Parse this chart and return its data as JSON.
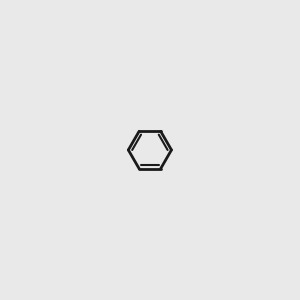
{
  "bg_color": "#e9e9e9",
  "bond_color": "#1a1a1a",
  "N_color": "#2222dd",
  "O_color": "#dd2222",
  "stereo_color": "#4aaba8",
  "lw": 1.5,
  "lw_thick": 2.0
}
